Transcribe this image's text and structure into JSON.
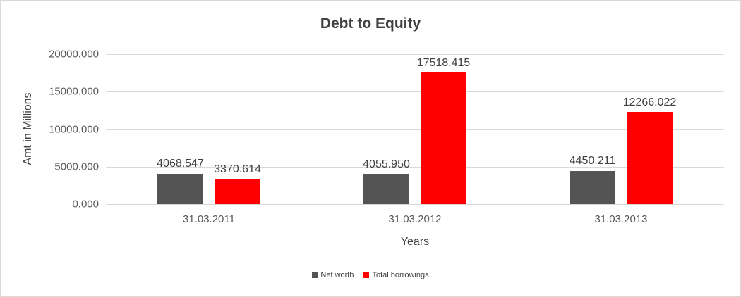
{
  "chart": {
    "title": "Debt to Equity",
    "y_axis_title": "Amt in Millions",
    "x_axis_title": "Years"
  },
  "chart_data": {
    "type": "bar",
    "title": "Debt to Equity",
    "xlabel": "Years",
    "ylabel": "Amt in Millions",
    "categories": [
      "31.03.2011",
      "31.03.2012",
      "31.03.2013"
    ],
    "series": [
      {
        "name": "Net worth",
        "color": "#545454",
        "values": [
          4068.547,
          4055.95,
          4450.211
        ],
        "labels": [
          "4068.547",
          "4055.950",
          "4450.211"
        ]
      },
      {
        "name": "Total borrowings",
        "color": "#ff0000",
        "values": [
          3370.614,
          17518.415,
          12266.022
        ],
        "labels": [
          "3370.614",
          "17518.415",
          "12266.022"
        ]
      }
    ],
    "ylim": [
      0,
      20000
    ],
    "yticks": [
      {
        "value": 0,
        "label": "0.000"
      },
      {
        "value": 5000,
        "label": "5000.000"
      },
      {
        "value": 10000,
        "label": "10000.000"
      },
      {
        "value": 15000,
        "label": "15000.000"
      },
      {
        "value": 20000,
        "label": "20000.000"
      }
    ],
    "grid": true,
    "legend_position": "bottom"
  },
  "colors": {
    "net_worth": "#545454",
    "total_borrowings": "#ff0000",
    "gridline": "#d9d9d9",
    "frame_border": "#d9d9d9",
    "tick_text": "#595959",
    "label_text": "#404040",
    "title_text": "#3f3f3f",
    "background": "#ffffff"
  }
}
